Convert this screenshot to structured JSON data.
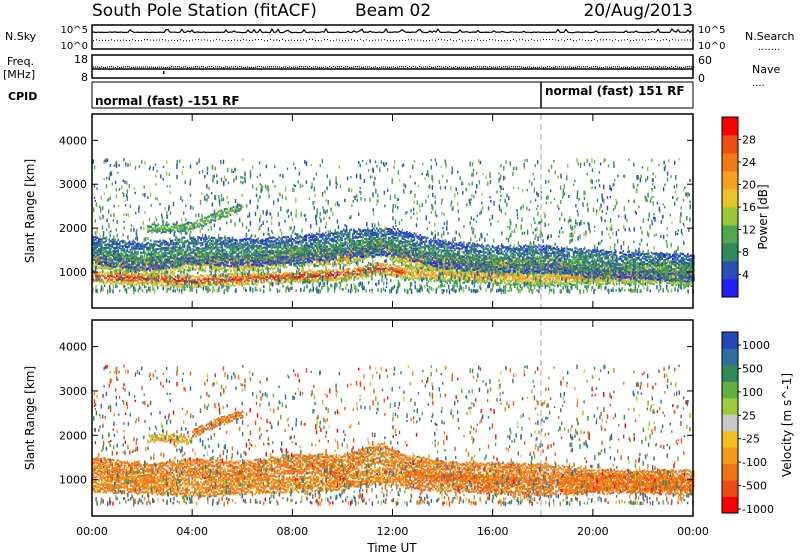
{
  "header": {
    "station": "South Pole Station (fitACF)",
    "beam": "Beam 02",
    "date": "20/Aug/2013"
  },
  "left_labels": {
    "nsky": "N.Sky",
    "nsky_top": "10^5",
    "nsky_bottom": "10^0",
    "freq_line1": "Freq.",
    "freq_line2": "[MHz]",
    "freq_top": "18",
    "freq_bottom": "8",
    "cpid": "CPID"
  },
  "right_labels": {
    "nsearch": "N.Search",
    "nsearch_top": "10^5",
    "nsearch_bottom": "10^0",
    "nave": "Nave",
    "nave_top": "60",
    "nave_bottom": "0"
  },
  "cpid_segments": [
    {
      "label": "normal (fast) -151 RF",
      "start_hour": 0
    },
    {
      "label": "normal (fast) 151 RF",
      "start_hour": 18
    }
  ],
  "power_colorbar": {
    "label": "Power [dB]",
    "ticks": [
      "4",
      "8",
      "12",
      "16",
      "20",
      "24",
      "28"
    ],
    "colors": [
      "#1f1fff",
      "#2a4fb8",
      "#2f8a5a",
      "#4fa84f",
      "#9ac83a",
      "#e8c32a",
      "#f6a21e",
      "#f27a14",
      "#ee4c10",
      "#ff0000"
    ]
  },
  "velocity_colorbar": {
    "label": "Velocity [m s^-1]",
    "ticks": [
      "1000",
      "500",
      "100",
      "25",
      "-25",
      "-100",
      "-500",
      "-1000"
    ],
    "colors": [
      "#2448b8",
      "#2a6fa0",
      "#2f8a5a",
      "#5fb040",
      "#9ccc3a",
      "#c8c8c8",
      "#f3bf1c",
      "#f49a16",
      "#ef7414",
      "#ec4c10",
      "#ff0000"
    ]
  },
  "chart_data": [
    {
      "type": "heatmap",
      "name": "power",
      "ylabel": "Slant Range [km]",
      "xlim": [
        0,
        24
      ],
      "ylim": [
        180,
        4600
      ],
      "yticks": [
        1000,
        2000,
        3000,
        4000
      ],
      "zlabel": "Power [dB]",
      "zlim": [
        0,
        32
      ],
      "bands": [
        {
          "x": [
            0,
            2.2,
            4,
            6,
            8,
            10,
            11.5,
            12.5,
            14,
            16,
            18,
            20,
            22,
            24
          ],
          "y": [
            1300,
            1150,
            1250,
            1200,
            1350,
            1350,
            1600,
            1350,
            1200,
            1150,
            1150,
            1000,
            1000,
            1000
          ],
          "width": 380,
          "power": 24
        },
        {
          "x": [
            0,
            2.5,
            4,
            6,
            8,
            10,
            11.5,
            12.5
          ],
          "y": [
            900,
            850,
            800,
            850,
            900,
            950,
            1100,
            1000
          ],
          "width": 260,
          "power": 29
        },
        {
          "x": [
            12.5,
            14,
            16,
            18,
            20,
            22,
            24
          ],
          "y": [
            1000,
            950,
            900,
            850,
            900,
            900,
            850
          ],
          "width": 300,
          "power": 22
        },
        {
          "x": [
            0,
            2,
            4,
            6,
            8,
            10,
            12,
            14,
            16,
            18,
            20,
            22,
            24
          ],
          "y": [
            1500,
            1350,
            1500,
            1450,
            1500,
            1650,
            1700,
            1400,
            1300,
            1300,
            1200,
            1150,
            1100
          ],
          "width": 600,
          "power": 8
        },
        {
          "x": [
            2.2,
            3,
            4,
            5,
            6
          ],
          "y": [
            2000,
            2000,
            2050,
            2300,
            2500
          ],
          "width": 150,
          "power": 14
        }
      ],
      "noise": {
        "xrange": [
          0,
          24
        ],
        "yrange": [
          600,
          3600
        ],
        "count": 2600,
        "power_range": [
          4,
          14
        ]
      }
    },
    {
      "type": "heatmap",
      "name": "velocity",
      "ylabel": "Slant Range [km]",
      "xlabel": "Time UT",
      "xlim": [
        0,
        24
      ],
      "ylim": [
        180,
        4600
      ],
      "xticks": [
        "00:00",
        "04:00",
        "08:00",
        "12:00",
        "16:00",
        "20:00",
        "00:00"
      ],
      "yticks": [
        1000,
        2000,
        3000,
        4000
      ],
      "zlabel": "Velocity [m s^-1]",
      "bands": [
        {
          "x": [
            0,
            2.2,
            4,
            6,
            8,
            10,
            11.5,
            12.5,
            14,
            16,
            18,
            20,
            22,
            24
          ],
          "y": [
            1300,
            1150,
            1250,
            1200,
            1350,
            1350,
            1600,
            1350,
            1200,
            1150,
            1150,
            1000,
            1000,
            1000
          ],
          "width": 420,
          "velocity": -150
        },
        {
          "x": [
            0,
            2.5,
            4,
            6,
            8,
            10,
            11.5,
            12.5
          ],
          "y": [
            900,
            850,
            800,
            850,
            900,
            950,
            1100,
            1000
          ],
          "width": 320,
          "velocity": -120
        },
        {
          "x": [
            12.5,
            14,
            16,
            18,
            20,
            22,
            24
          ],
          "y": [
            1000,
            950,
            900,
            850,
            900,
            900,
            850
          ],
          "width": 380,
          "velocity": -180
        },
        {
          "x": [
            2.2,
            3,
            4
          ],
          "y": [
            1950,
            1950,
            1900
          ],
          "width": 170,
          "velocity": 0
        },
        {
          "x": [
            4,
            5,
            6
          ],
          "y": [
            2050,
            2300,
            2500
          ],
          "width": 150,
          "velocity": -200
        }
      ],
      "noise": {
        "xrange": [
          0,
          24
        ],
        "yrange": [
          500,
          3600
        ],
        "count": 2000,
        "velocity_range": [
          -600,
          800
        ]
      }
    }
  ]
}
